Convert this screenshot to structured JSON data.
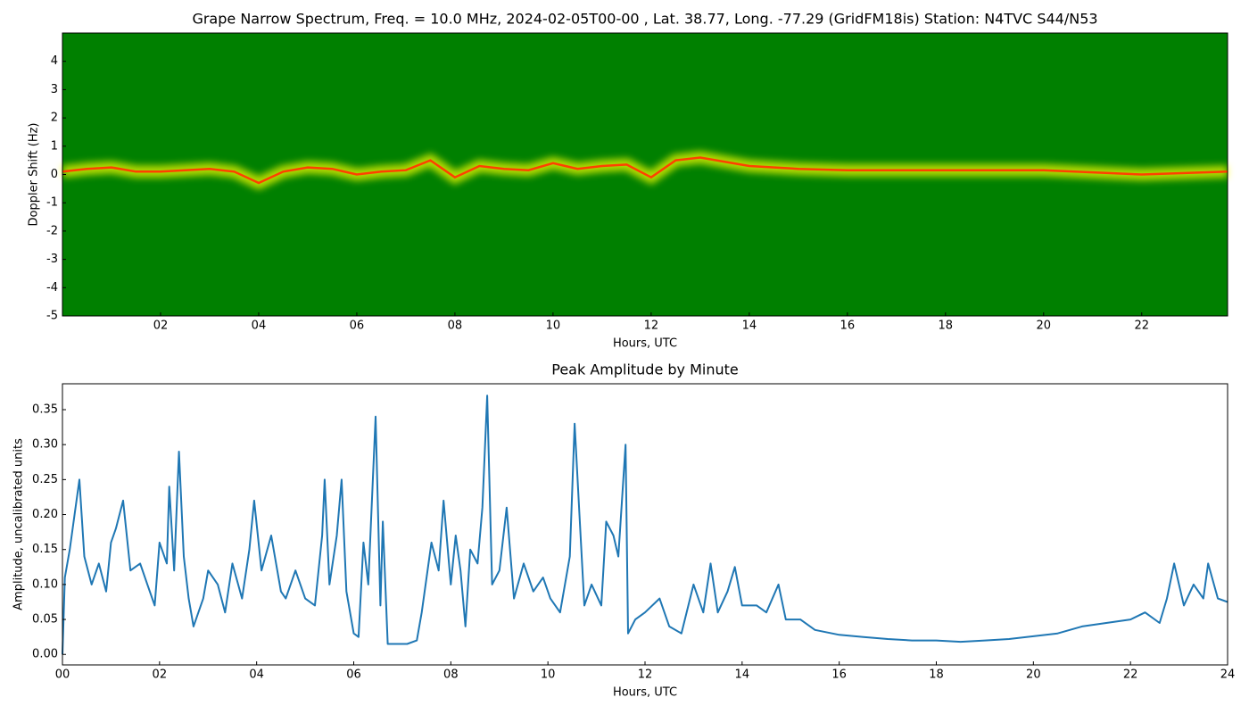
{
  "chart_data": [
    {
      "type": "spectrogram",
      "title": "Grape Narrow Spectrum, Freq. = 10.0 MHz, 2024-02-05T00-00 , Lat.  38.77, Long. -77.29 (GridFM18is) Station: N4TVC S44/N53",
      "x_label": "Hours, UTC",
      "y_label": "Doppler Shift (Hz)",
      "background_color": "#008000",
      "signal_color": "#ffff00",
      "color": "#ff4000",
      "x": [
        0,
        0.5,
        1,
        1.5,
        2,
        2.5,
        3,
        3.5,
        4,
        4.5,
        5,
        5.5,
        6,
        6.5,
        7,
        7.5,
        8,
        8.5,
        9,
        9.5,
        10,
        10.5,
        11,
        11.5,
        12,
        12.5,
        13,
        14,
        15,
        16,
        18,
        20,
        22,
        23.75
      ],
      "values": [
        0.1,
        0.2,
        0.25,
        0.1,
        0.1,
        0.15,
        0.2,
        0.1,
        -0.3,
        0.1,
        0.25,
        0.2,
        0.0,
        0.1,
        0.15,
        0.5,
        -0.1,
        0.3,
        0.2,
        0.15,
        0.4,
        0.2,
        0.3,
        0.35,
        -0.1,
        0.5,
        0.6,
        0.3,
        0.2,
        0.15,
        0.15,
        0.15,
        0.0,
        0.1
      ],
      "xlim": [
        0,
        23.75
      ],
      "xticks": [
        {
          "value": 2,
          "label": "02"
        },
        {
          "value": 4,
          "label": "04"
        },
        {
          "value": 6,
          "label": "06"
        },
        {
          "value": 8,
          "label": "08"
        },
        {
          "value": 10,
          "label": "10"
        },
        {
          "value": 12,
          "label": "12"
        },
        {
          "value": 14,
          "label": "14"
        },
        {
          "value": 16,
          "label": "16"
        },
        {
          "value": 18,
          "label": "18"
        },
        {
          "value": 20,
          "label": "20"
        },
        {
          "value": 22,
          "label": "22"
        }
      ],
      "ylim": [
        -5,
        5
      ],
      "yticks": [
        -5,
        -4,
        -3,
        -2,
        -1,
        0,
        1,
        2,
        3,
        4
      ]
    },
    {
      "type": "line",
      "title": "Peak Amplitude by Minute",
      "x_label": "Hours, UTC",
      "y_label": "Amplitude, uncalibrated units",
      "color": "#1f77b4",
      "x": [
        0,
        0.05,
        0.15,
        0.25,
        0.35,
        0.45,
        0.6,
        0.75,
        0.9,
        1.0,
        1.1,
        1.25,
        1.4,
        1.6,
        1.75,
        1.9,
        2.0,
        2.15,
        2.2,
        2.3,
        2.4,
        2.5,
        2.6,
        2.7,
        2.9,
        3.0,
        3.2,
        3.35,
        3.5,
        3.7,
        3.85,
        3.95,
        4.1,
        4.3,
        4.5,
        4.6,
        4.8,
        5.0,
        5.2,
        5.35,
        5.4,
        5.5,
        5.65,
        5.75,
        5.85,
        6.0,
        6.1,
        6.2,
        6.3,
        6.45,
        6.55,
        6.6,
        6.7,
        6.9,
        7.1,
        7.3,
        7.4,
        7.6,
        7.75,
        7.85,
        8.0,
        8.1,
        8.2,
        8.3,
        8.4,
        8.55,
        8.65,
        8.75,
        8.85,
        9.0,
        9.15,
        9.3,
        9.5,
        9.7,
        9.9,
        10.05,
        10.25,
        10.45,
        10.55,
        10.65,
        10.75,
        10.9,
        11.1,
        11.2,
        11.35,
        11.45,
        11.6,
        11.65,
        11.8,
        12.0,
        12.3,
        12.5,
        12.75,
        13.0,
        13.2,
        13.35,
        13.5,
        13.7,
        13.85,
        14.0,
        14.3,
        14.5,
        14.75,
        14.9,
        15.2,
        15.5,
        16.0,
        16.5,
        17.0,
        17.5,
        18.0,
        18.5,
        19.0,
        19.5,
        20.0,
        20.5,
        21.0,
        21.5,
        22.0,
        22.3,
        22.6,
        22.75,
        22.9,
        23.1,
        23.3,
        23.5,
        23.6,
        23.8,
        24.0
      ],
      "values": [
        0.0,
        0.11,
        0.15,
        0.2,
        0.25,
        0.14,
        0.1,
        0.13,
        0.09,
        0.16,
        0.18,
        0.22,
        0.12,
        0.13,
        0.1,
        0.07,
        0.16,
        0.13,
        0.24,
        0.12,
        0.29,
        0.14,
        0.08,
        0.04,
        0.08,
        0.12,
        0.1,
        0.06,
        0.13,
        0.08,
        0.15,
        0.22,
        0.12,
        0.17,
        0.09,
        0.08,
        0.12,
        0.08,
        0.07,
        0.17,
        0.25,
        0.1,
        0.17,
        0.25,
        0.09,
        0.03,
        0.025,
        0.16,
        0.1,
        0.34,
        0.07,
        0.19,
        0.015,
        0.015,
        0.015,
        0.02,
        0.06,
        0.16,
        0.12,
        0.22,
        0.1,
        0.17,
        0.12,
        0.04,
        0.15,
        0.13,
        0.21,
        0.37,
        0.1,
        0.12,
        0.21,
        0.08,
        0.13,
        0.09,
        0.11,
        0.08,
        0.06,
        0.14,
        0.33,
        0.2,
        0.07,
        0.1,
        0.07,
        0.19,
        0.17,
        0.14,
        0.3,
        0.03,
        0.05,
        0.06,
        0.08,
        0.04,
        0.03,
        0.1,
        0.06,
        0.13,
        0.06,
        0.09,
        0.125,
        0.07,
        0.07,
        0.06,
        0.1,
        0.05,
        0.05,
        0.035,
        0.028,
        0.025,
        0.022,
        0.02,
        0.02,
        0.018,
        0.02,
        0.022,
        0.026,
        0.03,
        0.04,
        0.045,
        0.05,
        0.06,
        0.045,
        0.08,
        0.13,
        0.07,
        0.1,
        0.08,
        0.13,
        0.08,
        0.075
      ],
      "xlim": [
        0,
        24
      ],
      "xticks": [
        {
          "value": 0,
          "label": "00"
        },
        {
          "value": 2,
          "label": "02"
        },
        {
          "value": 4,
          "label": "04"
        },
        {
          "value": 6,
          "label": "06"
        },
        {
          "value": 8,
          "label": "08"
        },
        {
          "value": 10,
          "label": "10"
        },
        {
          "value": 12,
          "label": "12"
        },
        {
          "value": 14,
          "label": "14"
        },
        {
          "value": 16,
          "label": "16"
        },
        {
          "value": 18,
          "label": "18"
        },
        {
          "value": 20,
          "label": "20"
        },
        {
          "value": 22,
          "label": "22"
        },
        {
          "value": 24,
          "label": "24"
        }
      ],
      "ylim": [
        -0.015,
        0.387
      ],
      "yticks": [
        {
          "value": 0,
          "label": "0.00"
        },
        {
          "value": 0.05,
          "label": "0.05"
        },
        {
          "value": 0.1,
          "label": "0.10"
        },
        {
          "value": 0.15,
          "label": "0.15"
        },
        {
          "value": 0.2,
          "label": "0.20"
        },
        {
          "value": 0.25,
          "label": "0.25"
        },
        {
          "value": 0.3,
          "label": "0.30"
        },
        {
          "value": 0.35,
          "label": "0.35"
        }
      ]
    }
  ]
}
